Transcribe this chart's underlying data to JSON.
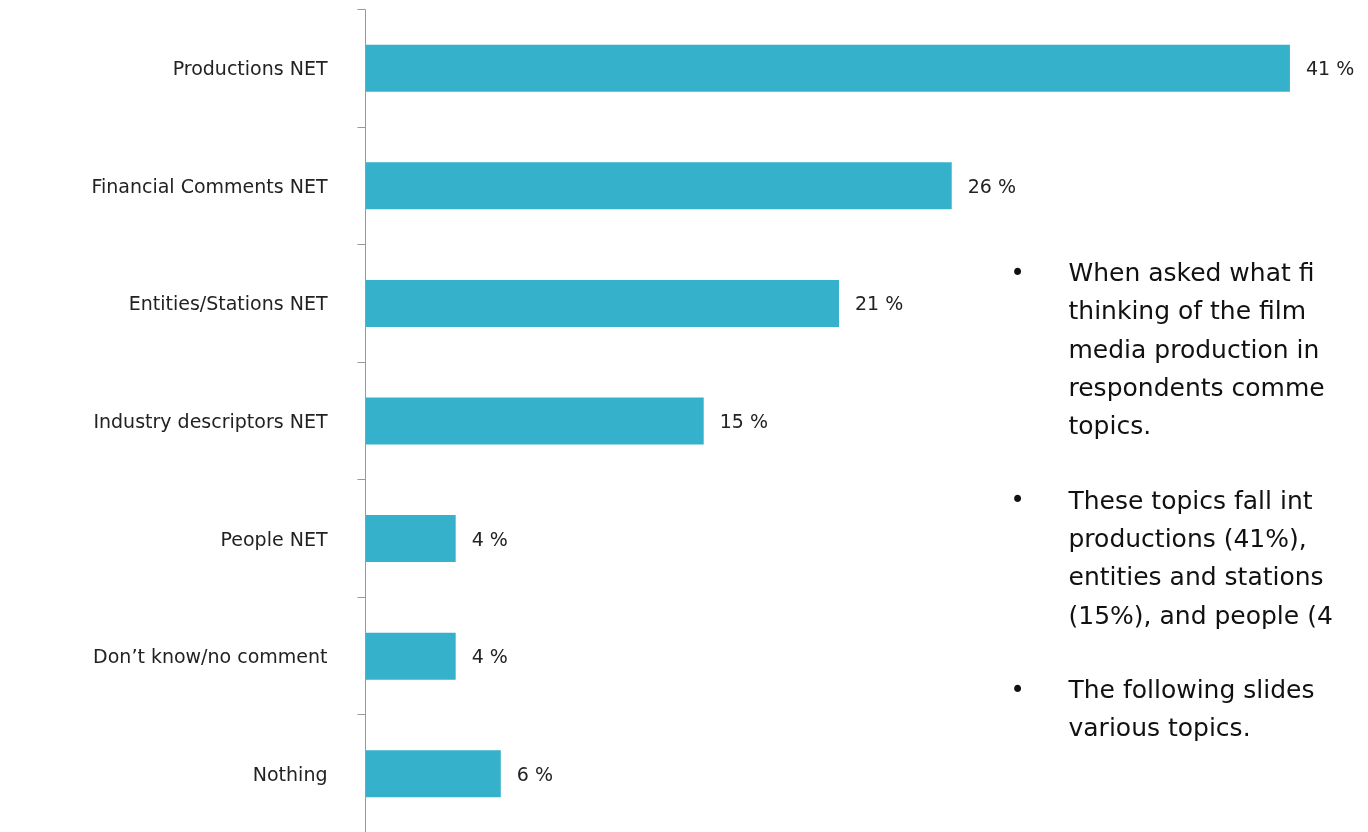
{
  "chart_data": {
    "type": "bar",
    "orientation": "horizontal",
    "categories": [
      "Productions NET",
      "Financial Comments NET",
      "Entities/Stations NET",
      "Industry descriptors NET",
      "People NET",
      "Don’t know/no comment",
      "Nothing"
    ],
    "values": [
      41,
      26,
      21,
      15,
      4,
      4,
      6
    ],
    "color": "#35b1cb",
    "value_labels": [
      "41 %",
      "26 %",
      "21 %",
      "15 %",
      "4 %",
      "4 %",
      "6 %"
    ],
    "annotations": [
      "•\nWhen asked what fi\nthinking of the film\nmedia production in\nrespondents comme\ntopics.",
      "•\nThese topics fall int\nproductions (41%),\nentities and stations\n(15%), and people (4",
      "•\nThe following slides\nvarious topics."
    ],
    "grid": false
  }
}
